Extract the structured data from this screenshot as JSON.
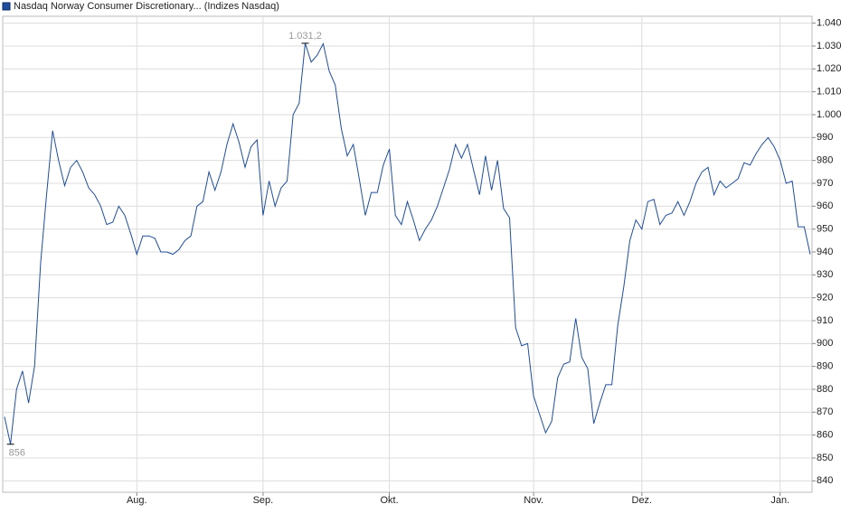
{
  "chart_data": {
    "type": "line",
    "series": [
      {
        "name": "Nasdaq Norway Consumer Discretionary... (Indizes Nasdaq)",
        "color": "#1f4e9c",
        "values": [
          868,
          856,
          880,
          888,
          874,
          890,
          935,
          965,
          993,
          980,
          969,
          977,
          980,
          975,
          968,
          965,
          960,
          952,
          953,
          960,
          956,
          948,
          939,
          947,
          947,
          946,
          940,
          940,
          939,
          941,
          945,
          947,
          960,
          962,
          975,
          967,
          975,
          987,
          996,
          988,
          977,
          986,
          989,
          956,
          971,
          960,
          968,
          971,
          1000,
          1005,
          1031.2,
          1023,
          1026,
          1031,
          1019,
          1013,
          994,
          982,
          987,
          972,
          956,
          966,
          966,
          978,
          985,
          956,
          952,
          962,
          954,
          945,
          950,
          954,
          960,
          968,
          976,
          987,
          981,
          987,
          976,
          965,
          982,
          967,
          980,
          959,
          955,
          907,
          899,
          900,
          877,
          869,
          861,
          866,
          885,
          891,
          892,
          911,
          894,
          889,
          865,
          874,
          882,
          882,
          908,
          925,
          945,
          954,
          950,
          962,
          963,
          952,
          956,
          957,
          962,
          956,
          962,
          970,
          975,
          977,
          965,
          971,
          968,
          970,
          972,
          979,
          978,
          983,
          987,
          990,
          986,
          980,
          970,
          971,
          951,
          951,
          939
        ]
      }
    ],
    "categories": [
      null,
      null,
      null,
      null,
      null,
      null,
      null,
      null,
      null,
      null,
      null,
      null,
      null,
      null,
      null,
      null,
      null,
      null,
      null,
      null,
      null,
      null,
      "Aug.",
      null,
      null,
      null,
      null,
      null,
      null,
      null,
      null,
      null,
      null,
      null,
      null,
      null,
      null,
      null,
      null,
      null,
      null,
      null,
      null,
      "Sep.",
      null,
      null,
      null,
      null,
      null,
      null,
      null,
      null,
      null,
      null,
      null,
      null,
      null,
      null,
      null,
      null,
      null,
      null,
      null,
      null,
      "Okt.",
      null,
      null,
      null,
      null,
      null,
      null,
      null,
      null,
      null,
      null,
      null,
      null,
      null,
      null,
      null,
      null,
      null,
      null,
      null,
      null,
      null,
      null,
      null,
      "Nov.",
      null,
      null,
      null,
      null,
      null,
      null,
      null,
      null,
      null,
      null,
      null,
      null,
      null,
      null,
      null,
      null,
      null,
      "Dez.",
      null,
      null,
      null,
      null,
      null,
      null,
      null,
      null,
      null,
      null,
      null,
      null,
      null,
      null,
      null,
      null,
      null,
      null,
      null,
      null,
      null,
      null,
      "Jan.",
      null,
      null,
      null,
      null,
      null
    ],
    "ylim": [
      835,
      1043
    ],
    "yticks": [
      840,
      850,
      860,
      870,
      880,
      890,
      900,
      910,
      920,
      930,
      940,
      950,
      960,
      970,
      980,
      990,
      {
        "value": 1000,
        "label": "1.000"
      },
      {
        "value": 1010,
        "label": "1.010"
      },
      {
        "value": 1020,
        "label": "1.020"
      },
      {
        "value": 1030,
        "label": "1.030"
      },
      {
        "value": 1040,
        "label": "1.040"
      }
    ],
    "annotations": [
      {
        "text": "1.031,2",
        "index": 50
      },
      {
        "text": "856",
        "index": 1
      }
    ],
    "grid": true
  }
}
